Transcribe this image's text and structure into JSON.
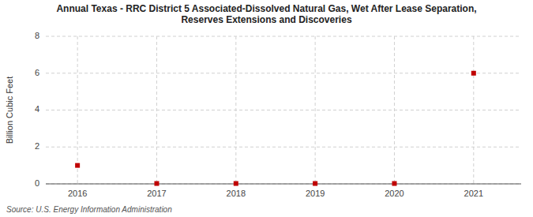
{
  "chart_data": {
    "type": "scatter",
    "title": "Annual Texas - RRC District 5 Associated-Dissolved Natural Gas, Wet After Lease Separation,\nReserves Extensions and Discoveries",
    "y_label": "Billion Cubic Feet",
    "annotations": [
      "Source: U.S. Energy Information Administration"
    ],
    "x": [
      2016,
      2017,
      2018,
      2019,
      2020,
      2021
    ],
    "values": [
      1.0,
      0.02,
      0.02,
      0.02,
      0.02,
      6.0
    ],
    "xlim": [
      2015.6,
      2021.6
    ],
    "xticks": [
      2016,
      2017,
      2018,
      2019,
      2020,
      2021
    ],
    "ylim": [
      0,
      8
    ],
    "yticks": [
      0,
      2,
      4,
      6,
      8
    ],
    "grid": true,
    "color": "#c00000",
    "marker": "square"
  }
}
